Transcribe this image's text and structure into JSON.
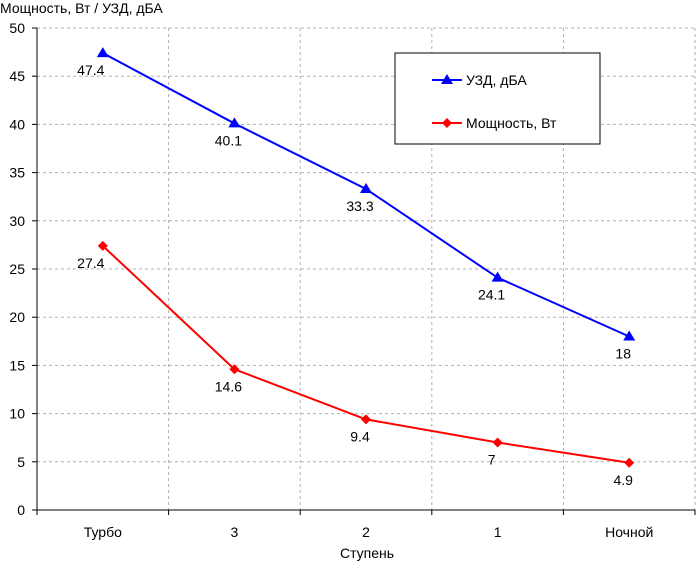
{
  "chart_data": {
    "type": "line",
    "title": "",
    "ylabel": "Мощность, Вт / УЗД, дБА",
    "xlabel": "Ступень",
    "categories": [
      "Турбо",
      "3",
      "2",
      "1",
      "Ночной"
    ],
    "ylim": [
      0,
      50
    ],
    "yticks": [
      0,
      5,
      10,
      15,
      20,
      25,
      30,
      35,
      40,
      45,
      50
    ],
    "grid": true,
    "legend_position": "top-right",
    "series": [
      {
        "name": "УЗД, дБА",
        "color": "#0000ff",
        "marker": "triangle",
        "values": [
          47.4,
          40.1,
          33.3,
          24.1,
          18
        ],
        "labels": [
          "47.4",
          "40.1",
          "33.3",
          "24.1",
          "18"
        ]
      },
      {
        "name": "Мощность, Вт",
        "color": "#ff0000",
        "marker": "diamond",
        "values": [
          27.4,
          14.6,
          9.4,
          7,
          4.9
        ],
        "labels": [
          "27.4",
          "14.6",
          "9.4",
          "7",
          "4.9"
        ]
      }
    ]
  }
}
